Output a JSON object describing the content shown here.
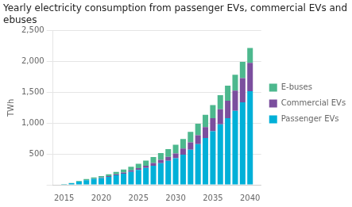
{
  "chart_data": {
    "type": "bar",
    "stacked": true,
    "title": "Yearly electricity consumption from passenger EVs, commercial EVs and\nebuses",
    "ylabel": "TWh",
    "x": [
      2015,
      2016,
      2017,
      2018,
      2019,
      2020,
      2021,
      2022,
      2023,
      2024,
      2025,
      2026,
      2027,
      2028,
      2029,
      2030,
      2031,
      2032,
      2033,
      2034,
      2035,
      2036,
      2037,
      2038,
      2039,
      2040
    ],
    "series": [
      {
        "name": "Passenger EVs",
        "color": "#00b0d8",
        "values": [
          10,
          25,
          50,
          75,
          95,
          110,
          130,
          155,
          180,
          210,
          240,
          275,
          310,
          350,
          390,
          430,
          490,
          570,
          660,
          760,
          870,
          980,
          1080,
          1200,
          1340,
          1520
        ]
      },
      {
        "name": "Commercial EVs",
        "color": "#7b4f9e",
        "values": [
          0,
          0,
          2,
          3,
          5,
          8,
          10,
          15,
          20,
          25,
          30,
          35,
          45,
          55,
          65,
          80,
          100,
          120,
          145,
          175,
          210,
          245,
          285,
          330,
          390,
          460
        ]
      },
      {
        "name": "E-buses",
        "color": "#4db88e",
        "values": [
          2,
          5,
          10,
          15,
          20,
          25,
          30,
          38,
          48,
          58,
          70,
          82,
          95,
          110,
          125,
          140,
          155,
          170,
          185,
          200,
          215,
          230,
          245,
          255,
          265,
          240
        ]
      }
    ],
    "xlim": [
      2013.5,
      2041.5
    ],
    "xticks": [
      2015,
      2020,
      2025,
      2030,
      2035,
      2040
    ],
    "ylim": [
      0,
      2500
    ],
    "yticks": [
      {
        "value": 0,
        "label": ""
      },
      500,
      {
        "value": 1000,
        "label": "1,000"
      },
      {
        "value": 1500,
        "label": "1,500"
      },
      {
        "value": 2000,
        "label": "2,000"
      },
      {
        "value": 2500,
        "label": "2,500"
      }
    ],
    "grid": true,
    "legend": "right"
  }
}
